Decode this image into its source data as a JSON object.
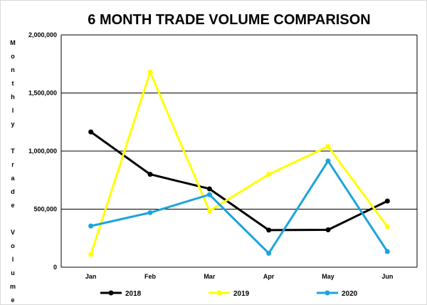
{
  "chart_data": {
    "type": "line",
    "title": "6 MONTH TRADE VOLUME COMPARISON",
    "ylabel": "Monthly Trade Volume",
    "xlabel": "",
    "categories": [
      "Jan",
      "Feb",
      "Mar",
      "Apr",
      "May",
      "Jun"
    ],
    "ylim": [
      0,
      2000000
    ],
    "yticks": [
      "0",
      "500,000",
      "1,000,000",
      "1,500,000",
      "2,000,000"
    ],
    "grid": "horizontal",
    "legend_position": "bottom",
    "series": [
      {
        "name": "2018",
        "color": "#000000",
        "values": [
          1165000,
          800000,
          675000,
          320000,
          322000,
          570000
        ]
      },
      {
        "name": "2019",
        "color": "#ffff00",
        "values": [
          110000,
          1680000,
          485000,
          800000,
          1040000,
          350000
        ]
      },
      {
        "name": "2020",
        "color": "#1ca4dc",
        "values": [
          355000,
          470000,
          625000,
          120000,
          915000,
          135000
        ]
      }
    ]
  }
}
